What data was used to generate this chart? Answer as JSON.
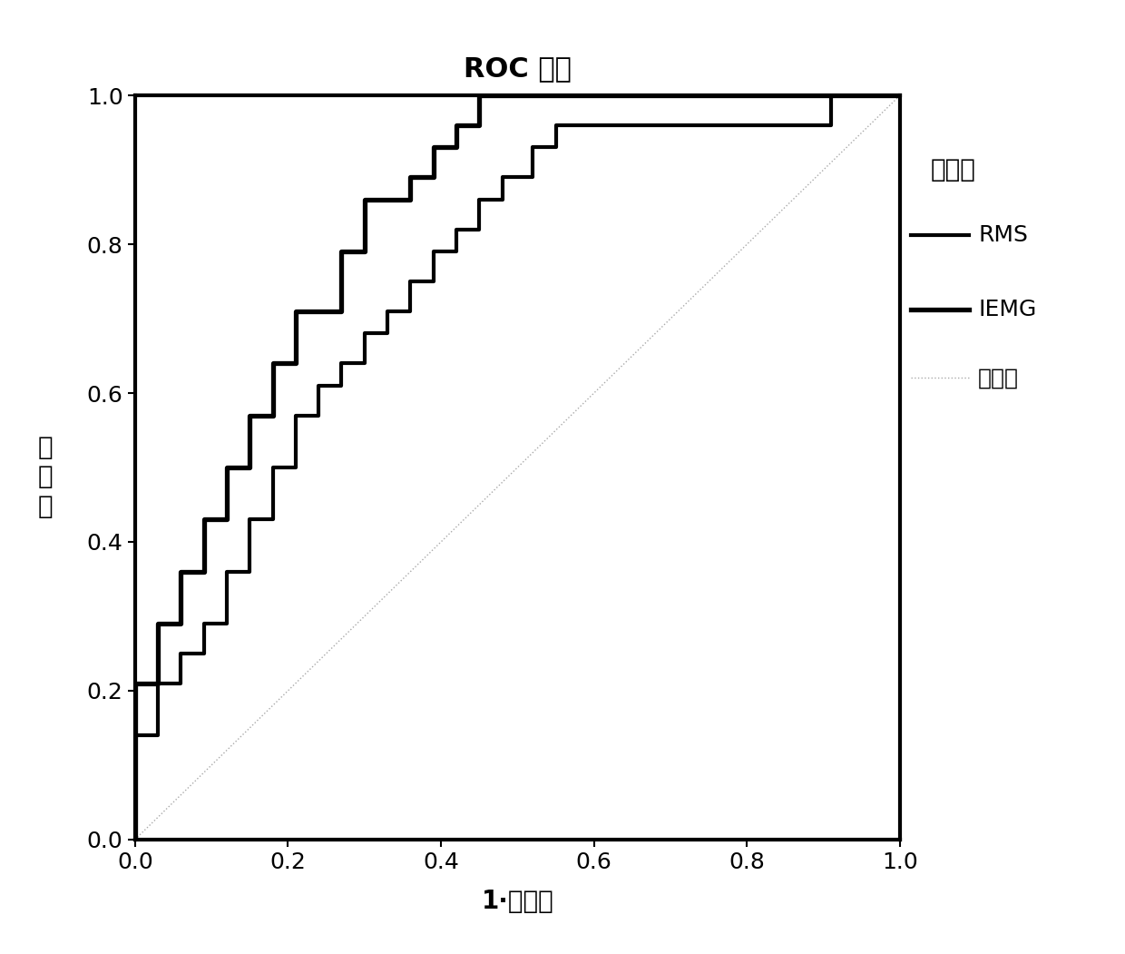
{
  "title": "ROC 曲线",
  "xlabel": "1·特异性",
  "ylabel_chars": [
    "敏",
    "感",
    "度"
  ],
  "legend_title": "曲线源",
  "legend_labels": [
    "RMS",
    "IEMG",
    "参考线"
  ],
  "xlim": [
    0.0,
    1.0
  ],
  "ylim": [
    0.0,
    1.0
  ],
  "xticks": [
    0.0,
    0.2,
    0.4,
    0.6,
    0.8,
    1.0
  ],
  "yticks": [
    0.0,
    0.2,
    0.4,
    0.6,
    0.8,
    1.0
  ],
  "xticklabels": [
    "0.0",
    "0.2",
    "0.4",
    "0.6",
    "0.8",
    "1.0"
  ],
  "yticklabels": [
    "0.0",
    "0.2",
    "0.4",
    "0.6",
    "0.8",
    "1.0"
  ],
  "rms_fpr": [
    0.0,
    0.0,
    0.03,
    0.03,
    0.06,
    0.06,
    0.09,
    0.09,
    0.12,
    0.12,
    0.15,
    0.15,
    0.18,
    0.18,
    0.21,
    0.21,
    0.24,
    0.24,
    0.27,
    0.27,
    0.3,
    0.3,
    0.33,
    0.33,
    0.36,
    0.36,
    0.39,
    0.39,
    0.42,
    0.42,
    0.45,
    0.45,
    0.48,
    0.48,
    0.52,
    0.52,
    0.55,
    0.55,
    0.85,
    0.85,
    0.91,
    0.91,
    1.0
  ],
  "rms_tpr": [
    0.0,
    0.14,
    0.14,
    0.21,
    0.21,
    0.25,
    0.25,
    0.29,
    0.29,
    0.36,
    0.36,
    0.43,
    0.43,
    0.5,
    0.5,
    0.57,
    0.57,
    0.61,
    0.61,
    0.64,
    0.64,
    0.68,
    0.68,
    0.71,
    0.71,
    0.75,
    0.75,
    0.79,
    0.79,
    0.82,
    0.82,
    0.86,
    0.86,
    0.89,
    0.89,
    0.93,
    0.93,
    0.96,
    0.96,
    0.96,
    0.96,
    1.0,
    1.0
  ],
  "iemg_fpr": [
    0.0,
    0.0,
    0.0,
    0.03,
    0.03,
    0.06,
    0.06,
    0.09,
    0.09,
    0.12,
    0.12,
    0.15,
    0.15,
    0.18,
    0.18,
    0.21,
    0.21,
    0.27,
    0.27,
    0.3,
    0.3,
    0.36,
    0.36,
    0.39,
    0.39,
    0.42,
    0.42,
    0.45,
    0.45,
    0.48,
    0.48,
    0.52,
    0.52,
    0.58,
    0.58,
    0.85,
    0.85,
    0.91,
    0.91,
    1.0
  ],
  "iemg_tpr": [
    0.0,
    0.07,
    0.21,
    0.21,
    0.29,
    0.29,
    0.36,
    0.36,
    0.43,
    0.43,
    0.5,
    0.5,
    0.57,
    0.57,
    0.64,
    0.64,
    0.71,
    0.71,
    0.79,
    0.79,
    0.86,
    0.86,
    0.89,
    0.89,
    0.93,
    0.93,
    0.96,
    0.96,
    1.0,
    1.0,
    1.0,
    1.0,
    1.0,
    1.0,
    1.0,
    1.0,
    1.0,
    1.0,
    1.0,
    1.0
  ],
  "line_color": "#000000",
  "ref_color": "#aaaaaa",
  "background_color": "#ffffff",
  "linewidth": 3.0,
  "ref_linewidth": 1.0,
  "spine_linewidth": 3.0,
  "title_fontsize": 22,
  "label_fontsize": 20,
  "tick_fontsize": 18,
  "legend_fontsize": 18,
  "legend_title_fontsize": 20
}
